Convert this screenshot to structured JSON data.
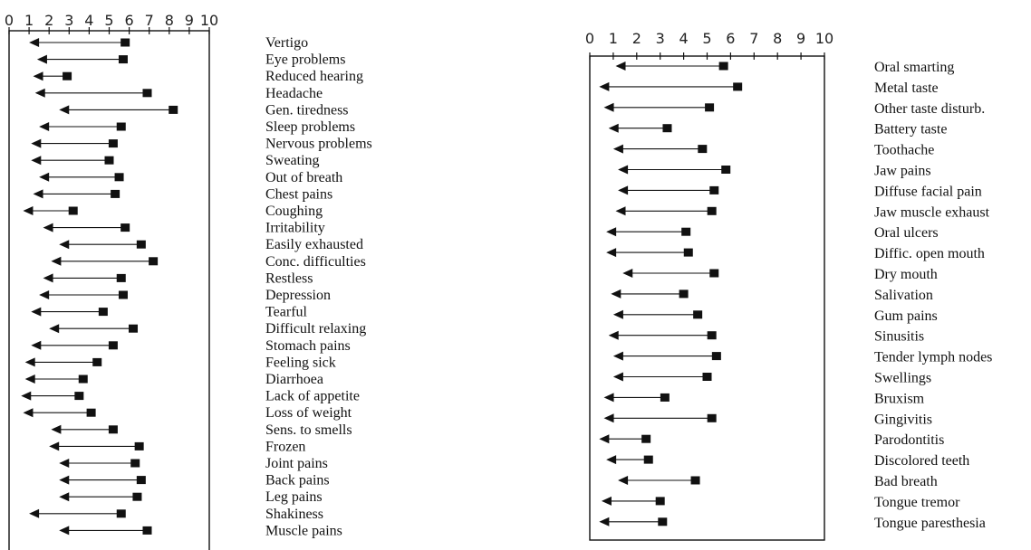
{
  "chart_data": [
    {
      "type": "range-arrow",
      "xlim": [
        0,
        10
      ],
      "tick_labels": [
        "0",
        "1",
        "2",
        "3",
        "4",
        "5",
        "6",
        "7",
        "8",
        "9",
        "10"
      ],
      "rows": [
        {
          "label": "Vertigo",
          "from": 5.8,
          "to": 1.0
        },
        {
          "label": "Eye problems",
          "from": 5.7,
          "to": 1.4
        },
        {
          "label": "Reduced hearing",
          "from": 2.9,
          "to": 1.2
        },
        {
          "label": "Headache",
          "from": 6.9,
          "to": 1.3
        },
        {
          "label": "Gen. tiredness",
          "from": 8.2,
          "to": 2.5
        },
        {
          "label": "Sleep problems",
          "from": 5.6,
          "to": 1.5
        },
        {
          "label": "Nervous problems",
          "from": 5.2,
          "to": 1.1
        },
        {
          "label": "Sweating",
          "from": 5.0,
          "to": 1.1
        },
        {
          "label": "Out of breath",
          "from": 5.5,
          "to": 1.5
        },
        {
          "label": "Chest pains",
          "from": 5.3,
          "to": 1.2
        },
        {
          "label": "Coughing",
          "from": 3.2,
          "to": 0.7
        },
        {
          "label": "Irritability",
          "from": 5.8,
          "to": 1.7
        },
        {
          "label": "Easily exhausted",
          "from": 6.6,
          "to": 2.5
        },
        {
          "label": "Conc. difficulties",
          "from": 7.2,
          "to": 2.1
        },
        {
          "label": "Restless",
          "from": 5.6,
          "to": 1.7
        },
        {
          "label": "Depression",
          "from": 5.7,
          "to": 1.5
        },
        {
          "label": "Tearful",
          "from": 4.7,
          "to": 1.1
        },
        {
          "label": "Difficult relaxing",
          "from": 6.2,
          "to": 2.0
        },
        {
          "label": "Stomach pains",
          "from": 5.2,
          "to": 1.1
        },
        {
          "label": "Feeling sick",
          "from": 4.4,
          "to": 0.8
        },
        {
          "label": "Diarrhoea",
          "from": 3.7,
          "to": 0.8
        },
        {
          "label": "Lack of appetite",
          "from": 3.5,
          "to": 0.6
        },
        {
          "label": "Loss of weight",
          "from": 4.1,
          "to": 0.7
        },
        {
          "label": "Sens. to smells",
          "from": 5.2,
          "to": 2.1
        },
        {
          "label": "Frozen",
          "from": 6.5,
          "to": 2.0
        },
        {
          "label": "Joint pains",
          "from": 6.3,
          "to": 2.5
        },
        {
          "label": "Back pains",
          "from": 6.6,
          "to": 2.5
        },
        {
          "label": "Leg pains",
          "from": 6.4,
          "to": 2.5
        },
        {
          "label": "Shakiness",
          "from": 5.6,
          "to": 1.0
        },
        {
          "label": "Muscle pains",
          "from": 6.9,
          "to": 2.5
        }
      ]
    },
    {
      "type": "range-arrow",
      "xlim": [
        0,
        10
      ],
      "tick_labels": [
        "0",
        "1",
        "2",
        "3",
        "4",
        "5",
        "6",
        "7",
        "8",
        "9",
        "10"
      ],
      "rows": [
        {
          "label": "Oral smarting",
          "from": 5.7,
          "to": 1.1
        },
        {
          "label": "Metal taste",
          "from": 6.3,
          "to": 0.4
        },
        {
          "label": "Other taste disturb.",
          "from": 5.1,
          "to": 0.6
        },
        {
          "label": "Battery taste",
          "from": 3.3,
          "to": 0.8
        },
        {
          "label": "Toothache",
          "from": 4.8,
          "to": 1.0
        },
        {
          "label": "Jaw pains",
          "from": 5.8,
          "to": 1.2
        },
        {
          "label": "Diffuse facial pain",
          "from": 5.3,
          "to": 1.2
        },
        {
          "label": "Jaw muscle exhaust",
          "from": 5.2,
          "to": 1.1
        },
        {
          "label": "Oral ulcers",
          "from": 4.1,
          "to": 0.7
        },
        {
          "label": "Diffic. open mouth",
          "from": 4.2,
          "to": 0.7
        },
        {
          "label": "Dry mouth",
          "from": 5.3,
          "to": 1.4
        },
        {
          "label": "Salivation",
          "from": 4.0,
          "to": 0.9
        },
        {
          "label": "Gum pains",
          "from": 4.6,
          "to": 1.0
        },
        {
          "label": "Sinusitis",
          "from": 5.2,
          "to": 0.8
        },
        {
          "label": "Tender lymph nodes",
          "from": 5.4,
          "to": 1.0
        },
        {
          "label": "Swellings",
          "from": 5.0,
          "to": 1.0
        },
        {
          "label": "Bruxism",
          "from": 3.2,
          "to": 0.6
        },
        {
          "label": "Gingivitis",
          "from": 5.2,
          "to": 0.6
        },
        {
          "label": "Parodontitis",
          "from": 2.4,
          "to": 0.4
        },
        {
          "label": "Discolored teeth",
          "from": 2.5,
          "to": 0.7
        },
        {
          "label": "Bad breath",
          "from": 4.5,
          "to": 1.2
        },
        {
          "label": "Tongue tremor",
          "from": 3.0,
          "to": 0.5
        },
        {
          "label": "Tongue paresthesia",
          "from": 3.1,
          "to": 0.4
        }
      ]
    }
  ]
}
